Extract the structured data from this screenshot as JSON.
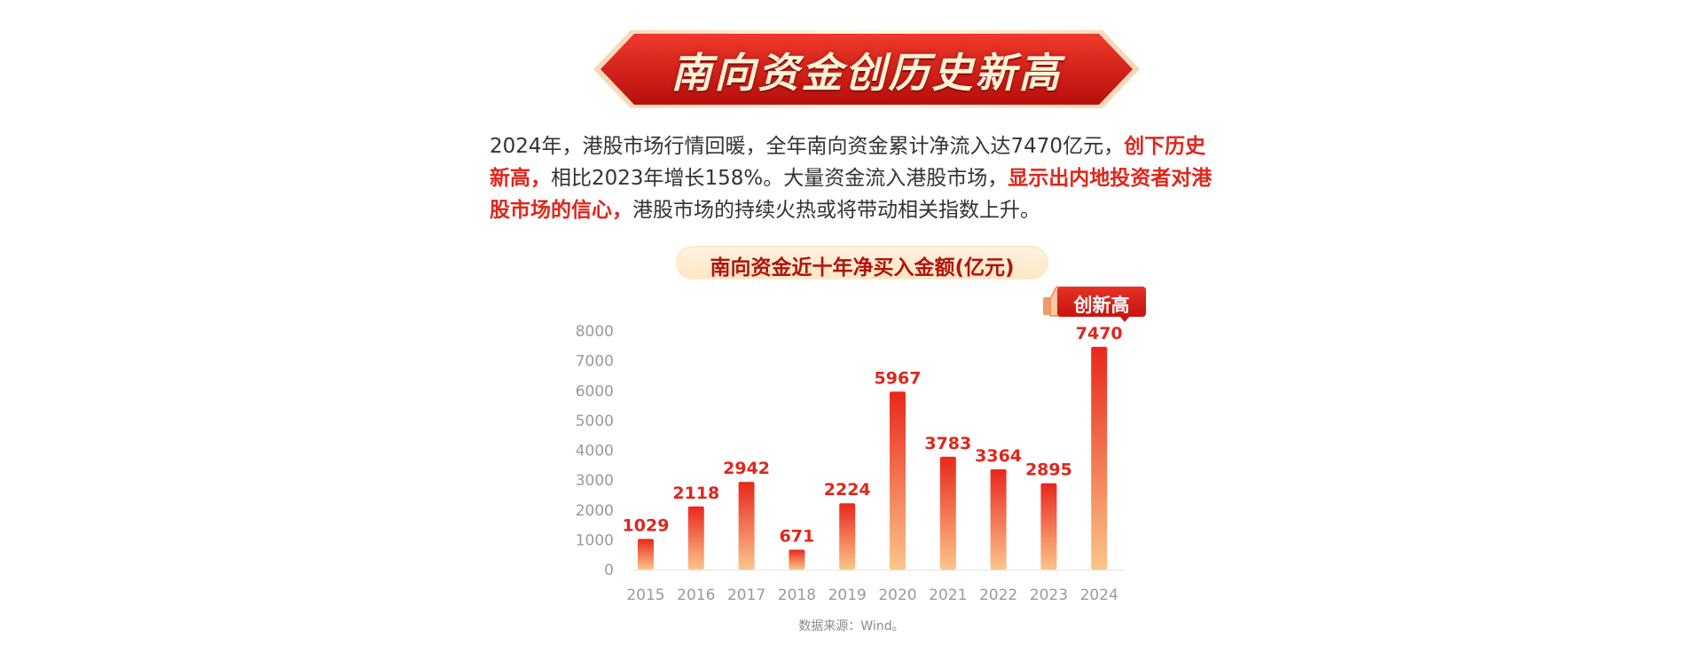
{
  "banner": {
    "title": "南向资金创历史新高"
  },
  "intro": {
    "part1": "2024年，港股市场行情回暖，全年南向资金累计净流入达7470亿元，",
    "highlight1": "创下历史新高，",
    "part2": "相比2023年增长158%。大量资金流入港股市场，",
    "highlight2": "显示出内地投资者对港股市场的信心，",
    "part3": "港股市场的持续火热或将带动相关指数上升。"
  },
  "badge": {
    "text": "创新高",
    "icon": "thumbs-up-icon"
  },
  "colors": {
    "accent": "#e0261b",
    "bar_top": "#e8281c",
    "bar_bottom": "#fcc58a",
    "axis_text": "#9a9a9a",
    "title_text": "#b3120c"
  },
  "chart_data": {
    "type": "bar",
    "title": "南向资金近十年净买入金额(亿元)",
    "categories": [
      "2015",
      "2016",
      "2017",
      "2018",
      "2019",
      "2020",
      "2021",
      "2022",
      "2023",
      "2024"
    ],
    "values": [
      1029,
      2118,
      2942,
      671,
      2224,
      5967,
      3783,
      3364,
      2895,
      7470
    ],
    "data_labels": [
      "1029",
      "2118",
      "2942",
      "671",
      "2224",
      "5967",
      "3783",
      "3364",
      "2895",
      "7470"
    ],
    "y_ticks": [
      "0",
      "1000",
      "2000",
      "3000",
      "4000",
      "5000",
      "6000",
      "7000",
      "8000"
    ],
    "ylim": [
      0,
      8000
    ],
    "grid": false,
    "legend": "none"
  },
  "footer": {
    "source": "数据来源：Wind。"
  }
}
